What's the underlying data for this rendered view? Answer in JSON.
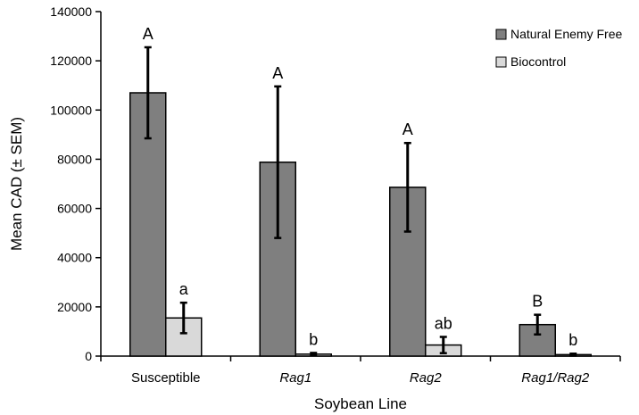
{
  "chart_data": {
    "type": "bar",
    "title": "",
    "xlabel": "Soybean Line",
    "ylabel": "Mean CAD (± SEM)",
    "ylim": [
      0,
      140000
    ],
    "yticks": [
      "0",
      "20000",
      "40000",
      "60000",
      "80000",
      "100000",
      "120000",
      "140000"
    ],
    "grid": false,
    "legend_position": "top-right",
    "categories": [
      "Susceptible",
      "Rag1",
      "Rag2",
      "Rag1/Rag2"
    ],
    "category_italic": [
      false,
      true,
      true,
      true
    ],
    "series": [
      {
        "name": "Natural Enemy Free",
        "color": "#7f7f7f",
        "values": [
          107000,
          78800,
          68600,
          12800
        ],
        "errors": [
          18500,
          30800,
          18000,
          4000
        ],
        "letters": [
          "A",
          "A",
          "A",
          "B"
        ]
      },
      {
        "name": "Biocontrol",
        "color": "#d9d9d9",
        "values": [
          15500,
          800,
          4500,
          600
        ],
        "errors": [
          6200,
          500,
          3300,
          400
        ],
        "letters": [
          "a",
          "b",
          "ab",
          "b"
        ]
      }
    ]
  }
}
